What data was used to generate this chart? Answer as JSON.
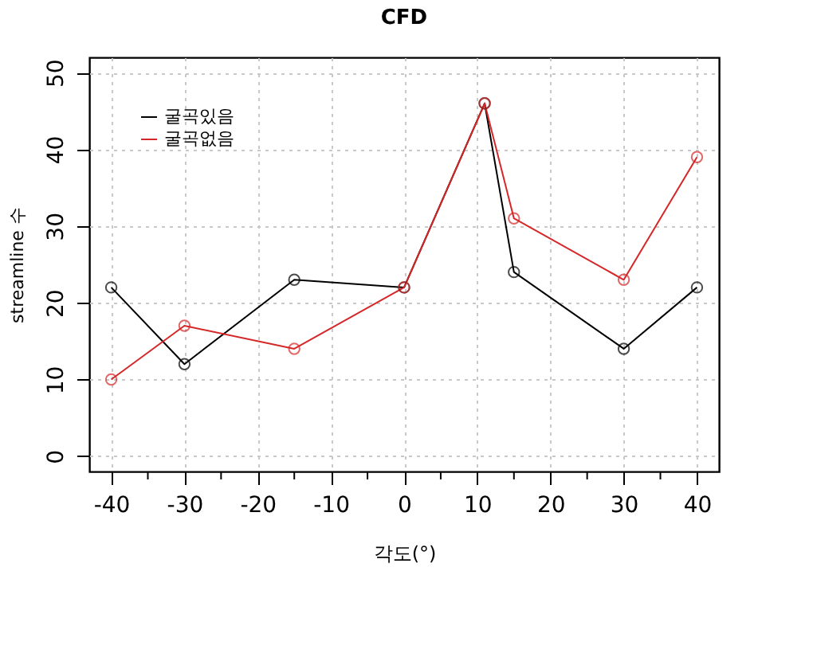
{
  "chart_data": {
    "type": "line",
    "title": "CFD",
    "xlabel": "각도(°)",
    "ylabel": "streamline 수",
    "x": [
      -40,
      -30,
      -15,
      0,
      11,
      15,
      30,
      40
    ],
    "series": [
      {
        "name": "굴곡있음",
        "color": "#000000",
        "values": [
          22,
          12,
          23,
          22,
          46,
          24,
          14,
          22
        ]
      },
      {
        "name": "굴곡없음",
        "color": "#d62728",
        "values": [
          10,
          17,
          14,
          22,
          46,
          31,
          23,
          39
        ]
      }
    ],
    "xlim": [
      -43,
      43
    ],
    "xticks": [
      -40,
      {
        "value": -35,
        "label": null
      },
      -30,
      {
        "value": -25,
        "label": null
      },
      -20,
      {
        "value": -15,
        "label": null
      },
      -10,
      {
        "value": -5,
        "label": null
      },
      0,
      {
        "value": 5,
        "label": null
      },
      10,
      {
        "value": 15,
        "label": null
      },
      20,
      {
        "value": 25,
        "label": null
      },
      30,
      {
        "value": 35,
        "label": null
      },
      40
    ],
    "ylim": [
      -2,
      52
    ],
    "yticks": [
      0,
      10,
      20,
      30,
      40,
      50
    ],
    "grid": true,
    "legend": "top left",
    "marker": "circle",
    "line_style": "solid"
  }
}
